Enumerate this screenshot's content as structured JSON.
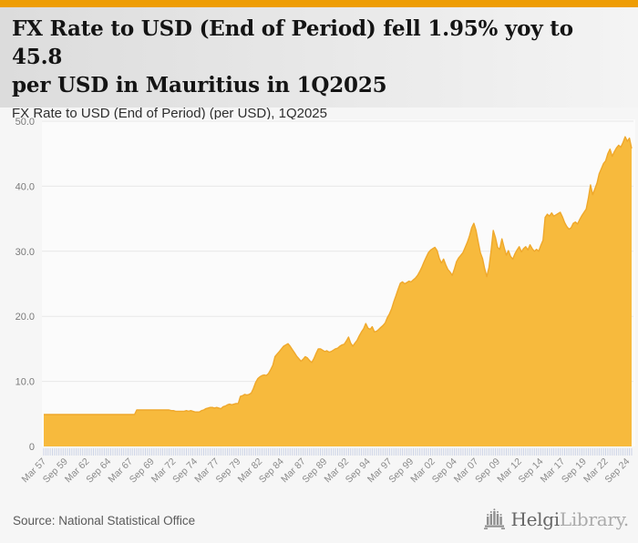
{
  "page": {
    "top_bar_color": "#EE9D05",
    "background": "#f6f6f6"
  },
  "header": {
    "title_line1": "FX Rate to USD (End of Period) fell 1.95% yoy to 45.8",
    "title_line2": "per USD in Mauritius in 1Q2025",
    "subtitle": "FX Rate to USD (End of Period) (per USD), 1Q2025"
  },
  "chart_data": {
    "type": "area",
    "title": "FX Rate to USD (End of Period) (per USD), 1Q2025",
    "country": "Mauritius",
    "unit": "per USD",
    "frequency": "quarterly",
    "x_start": "Mar 1957",
    "x_end": "Mar 2025",
    "last_value": 45.8,
    "yoy_change_pct": -1.95,
    "ylim": [
      0,
      52
    ],
    "grid": "horizontal",
    "legend": "none",
    "y_ticks": [
      {
        "v": 0,
        "label": "0"
      },
      {
        "v": 10,
        "label": "10.0"
      },
      {
        "v": 20,
        "label": "20.0"
      },
      {
        "v": 30,
        "label": "30.0"
      },
      {
        "v": 40,
        "label": "40.0"
      },
      {
        "v": 50,
        "label": "50.0"
      }
    ],
    "x_tick_every_quarters": 10,
    "x_tick_labels": [
      "Mar 57",
      "Sep 59",
      "Mar 62",
      "Sep 64",
      "Mar 67",
      "Sep 69",
      "Mar 72",
      "Sep 74",
      "Mar 77",
      "Sep 79",
      "Mar 82",
      "Sep 84",
      "Mar 87",
      "Sep 89",
      "Mar 92",
      "Sep 94",
      "Mar 97",
      "Sep 99",
      "Mar 02",
      "Sep 04",
      "Mar 07",
      "Sep 09",
      "Mar 12",
      "Sep 14",
      "Mar 17",
      "Sep 19",
      "Mar 22",
      "Sep 24"
    ],
    "area_color": "#F7BA3D",
    "line_color": "#EFA82B",
    "tick_color": "#CCD3E6",
    "axis_label_color": "#8a8a8a",
    "grid_color": "#e7e7e7",
    "plot_bg": "#fbfbfb",
    "series": [
      {
        "name": "FX Rate to USD (End of Period)",
        "values": [
          4.9,
          4.9,
          4.9,
          4.9,
          4.9,
          4.9,
          4.9,
          4.9,
          4.9,
          4.9,
          4.9,
          4.9,
          4.9,
          4.9,
          4.9,
          4.9,
          4.9,
          4.9,
          4.9,
          4.9,
          4.9,
          4.9,
          4.9,
          4.9,
          4.9,
          4.9,
          4.9,
          4.9,
          4.9,
          4.9,
          4.9,
          4.9,
          4.9,
          4.9,
          4.9,
          4.9,
          4.9,
          4.9,
          4.9,
          4.9,
          4.9,
          4.9,
          4.9,
          5.6,
          5.6,
          5.6,
          5.6,
          5.6,
          5.6,
          5.6,
          5.6,
          5.6,
          5.6,
          5.6,
          5.6,
          5.6,
          5.6,
          5.6,
          5.6,
          5.5,
          5.5,
          5.4,
          5.4,
          5.4,
          5.4,
          5.4,
          5.5,
          5.4,
          5.5,
          5.4,
          5.3,
          5.3,
          5.3,
          5.5,
          5.6,
          5.8,
          5.9,
          6.0,
          6.0,
          5.9,
          6.0,
          5.9,
          5.8,
          6.1,
          6.2,
          6.4,
          6.5,
          6.4,
          6.5,
          6.6,
          6.6,
          7.7,
          7.8,
          8.0,
          7.9,
          8.0,
          8.2,
          8.9,
          9.8,
          10.4,
          10.7,
          10.9,
          11.0,
          10.9,
          11.2,
          11.8,
          12.5,
          13.8,
          14.2,
          14.6,
          15.0,
          15.4,
          15.6,
          15.8,
          15.4,
          14.9,
          14.4,
          13.9,
          13.5,
          13.1,
          13.4,
          13.8,
          13.6,
          13.2,
          12.9,
          13.5,
          14.3,
          15.0,
          15.0,
          14.8,
          14.6,
          14.7,
          14.5,
          14.6,
          14.8,
          15.0,
          15.1,
          15.4,
          15.6,
          15.7,
          16.2,
          16.8,
          15.9,
          15.4,
          15.9,
          16.3,
          17.0,
          17.6,
          18.1,
          18.9,
          18.2,
          18.0,
          18.4,
          17.6,
          17.7,
          18.0,
          18.3,
          18.6,
          19.0,
          19.8,
          20.4,
          21.2,
          22.3,
          23.2,
          24.2,
          25.1,
          25.3,
          25.0,
          25.2,
          25.4,
          25.3,
          25.6,
          25.9,
          26.3,
          26.9,
          27.6,
          28.4,
          29.1,
          29.8,
          30.2,
          30.4,
          30.6,
          30.1,
          28.9,
          28.2,
          28.8,
          27.9,
          27.2,
          26.8,
          26.3,
          27.3,
          28.4,
          29.0,
          29.4,
          29.8,
          30.6,
          31.4,
          32.4,
          33.6,
          34.3,
          33.2,
          31.5,
          29.8,
          28.9,
          27.3,
          26.1,
          27.5,
          30.2,
          33.2,
          32.1,
          30.6,
          30.3,
          31.9,
          30.6,
          29.4,
          30.1,
          29.2,
          28.8,
          29.6,
          30.2,
          30.7,
          29.9,
          30.4,
          30.7,
          30.2,
          31.0,
          30.4,
          30.0,
          30.3,
          30.0,
          30.9,
          31.7,
          35.2,
          35.7,
          35.4,
          35.9,
          35.4,
          35.6,
          35.8,
          36.0,
          35.3,
          34.4,
          33.8,
          33.4,
          33.6,
          34.3,
          34.5,
          34.2,
          34.9,
          35.5,
          36.0,
          36.5,
          38.2,
          40.2,
          38.7,
          39.6,
          40.5,
          41.9,
          42.7,
          43.5,
          43.9,
          45.0,
          45.7,
          44.6,
          45.3,
          45.9,
          46.3,
          46.0,
          46.7,
          47.6,
          46.9,
          47.4,
          45.8
        ]
      }
    ]
  },
  "footer": {
    "source": "Source: National Statistical Office",
    "logo": {
      "brand": "Helgi",
      "suffix": "Library."
    }
  }
}
